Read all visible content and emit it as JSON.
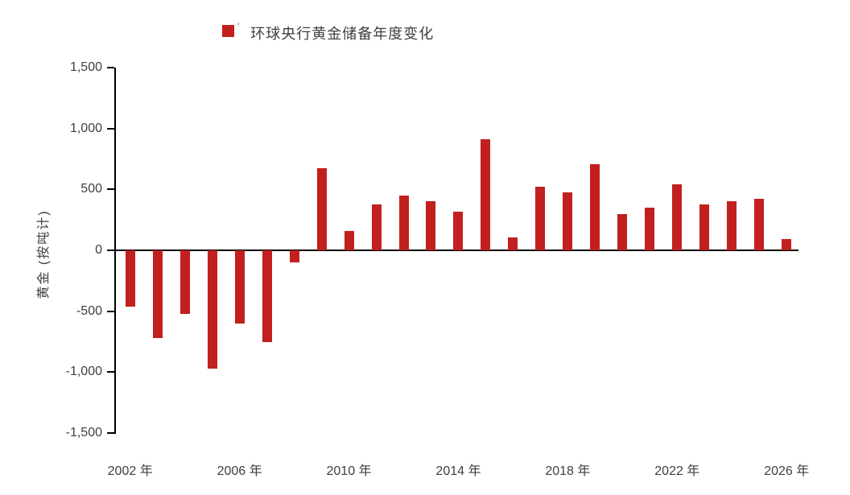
{
  "legend": {
    "label": "环球央行黄金储备年度变化",
    "note_mark": "'",
    "marker_color": "#C1201F"
  },
  "colors": {
    "bar": "#C1201F",
    "axis": "#000000",
    "text": "#3F3F3F",
    "background": "#FFFFFF"
  },
  "chart_data": {
    "type": "bar",
    "title": "环球央行黄金储备年度变化",
    "xlabel": "",
    "ylabel": "黄金 (按吨计)",
    "ylim": [
      -1500,
      1500
    ],
    "y_tick_step": 500,
    "y_tick_labels": [
      "1,500",
      "1,000",
      "500",
      "0",
      "-500",
      "-1,000",
      "-1,500"
    ],
    "x_tick_labels": [
      "2002 年",
      "2006 年",
      "2010 年",
      "2014 年",
      "2018 年",
      "2022 年",
      "2026 年"
    ],
    "x_tick_years": [
      2002,
      2006,
      2010,
      2014,
      2018,
      2022,
      2026
    ],
    "grid": false,
    "legend_position": "top",
    "bar_color": "#C1201F",
    "categories": [
      2002,
      2003,
      2004,
      2005,
      2006,
      2007,
      2008,
      2009,
      2010,
      2011,
      2012,
      2013,
      2014,
      2015,
      2016,
      2017,
      2018,
      2019,
      2020,
      2021,
      2022,
      2023,
      2024,
      2025,
      2026
    ],
    "values": [
      -460,
      -720,
      -520,
      -970,
      -600,
      -755,
      -100,
      675,
      160,
      375,
      450,
      405,
      315,
      915,
      105,
      525,
      475,
      710,
      300,
      350,
      545,
      375,
      400,
      425,
      90
    ]
  }
}
